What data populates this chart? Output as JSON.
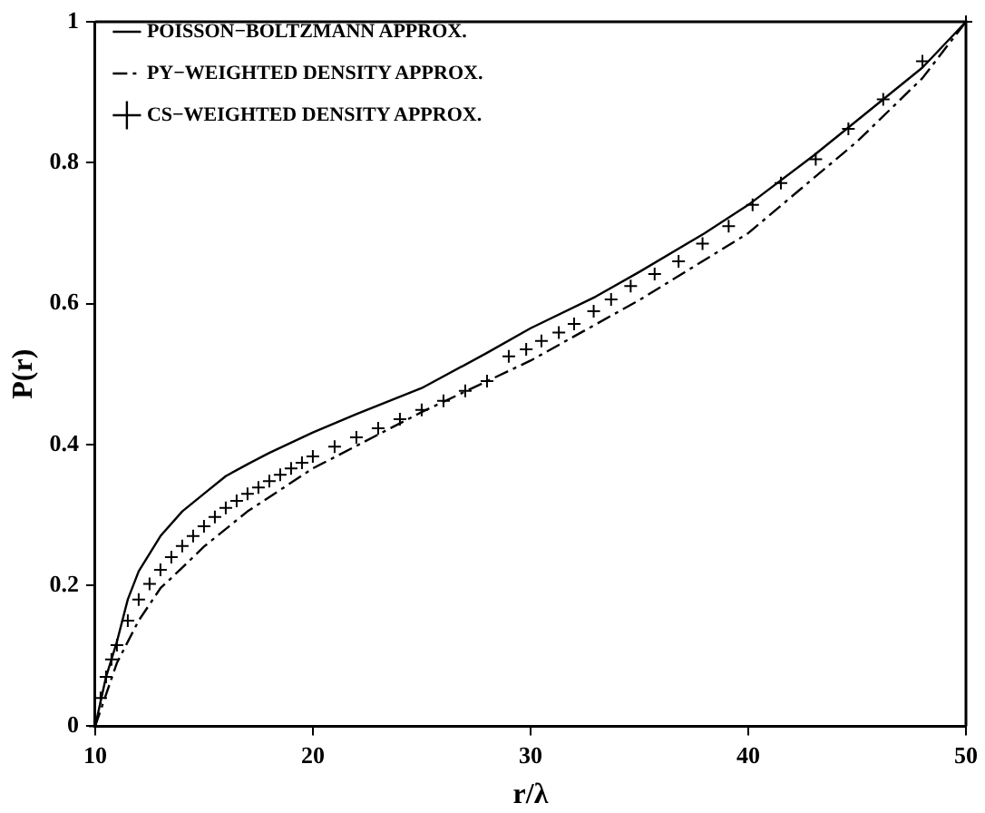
{
  "chart_data": {
    "type": "line",
    "xlabel": "r/λ",
    "ylabel": "P(r)",
    "xlim": [
      10,
      50
    ],
    "xticks": [
      10,
      20,
      30,
      40,
      50
    ],
    "ylim": [
      0,
      1
    ],
    "yticks": [
      0,
      {
        "value": 0.2,
        "label": "0.2"
      },
      {
        "value": 0.4,
        "label": "0.4"
      },
      {
        "value": 0.6,
        "label": "0.6"
      },
      {
        "value": 0.8,
        "label": "0.8"
      },
      1
    ],
    "legend": "top left",
    "grid": false,
    "series": [
      {
        "name": "POISSON−BOLTZMANN APPROX.",
        "color": "#000000",
        "marker": "none",
        "line_style": "solid",
        "x": [
          10,
          10.5,
          11,
          11.5,
          12,
          13,
          14,
          15,
          16,
          17,
          18,
          20,
          22,
          25,
          28,
          30,
          33,
          35,
          38,
          40,
          43,
          45,
          48,
          50
        ],
        "values": [
          0,
          0.07,
          0.12,
          0.18,
          0.22,
          0.27,
          0.305,
          0.33,
          0.355,
          0.372,
          0.388,
          0.417,
          0.443,
          0.48,
          0.53,
          0.565,
          0.61,
          0.645,
          0.7,
          0.74,
          0.81,
          0.86,
          0.935,
          1
        ]
      },
      {
        "name": "PY−WEIGHTED DENSITY APPROX.",
        "color": "#000000",
        "marker": "none",
        "line_style": "dashed",
        "x": [
          10,
          11,
          12,
          13,
          14,
          15,
          17,
          20,
          25,
          30,
          35,
          40,
          45,
          48,
          50
        ],
        "values": [
          0,
          0.09,
          0.15,
          0.196,
          0.225,
          0.255,
          0.305,
          0.366,
          0.446,
          0.519,
          0.605,
          0.7,
          0.83,
          0.92,
          1
        ]
      },
      {
        "name": "CS−WEIGHTED DENSITY APPROX.",
        "type": "scatter",
        "color": "#000000",
        "marker": "cross",
        "x": [
          10,
          10.25,
          10.5,
          10.75,
          11,
          11.5,
          12,
          12.5,
          13,
          13.5,
          14,
          14.5,
          15,
          15.5,
          16,
          16.5,
          17,
          17.5,
          18,
          18.5,
          19,
          19.5,
          20,
          21,
          22,
          23,
          24,
          25,
          26,
          27,
          28,
          29,
          29.8,
          30.5,
          31.3,
          32,
          32.9,
          33.7,
          34.6,
          35.7,
          36.8,
          37.9,
          39.1,
          40.2,
          41.5,
          43.1,
          44.6,
          46.2,
          48,
          50
        ],
        "values": [
          0,
          0.04,
          0.07,
          0.095,
          0.115,
          0.15,
          0.18,
          0.202,
          0.222,
          0.24,
          0.256,
          0.27,
          0.284,
          0.297,
          0.31,
          0.32,
          0.33,
          0.339,
          0.348,
          0.357,
          0.366,
          0.374,
          0.383,
          0.397,
          0.41,
          0.423,
          0.436,
          0.449,
          0.462,
          0.476,
          0.49,
          0.525,
          0.535,
          0.547,
          0.559,
          0.571,
          0.589,
          0.606,
          0.625,
          0.642,
          0.66,
          0.685,
          0.71,
          0.74,
          0.771,
          0.805,
          0.848,
          0.89,
          0.944,
          1
        ]
      }
    ]
  }
}
